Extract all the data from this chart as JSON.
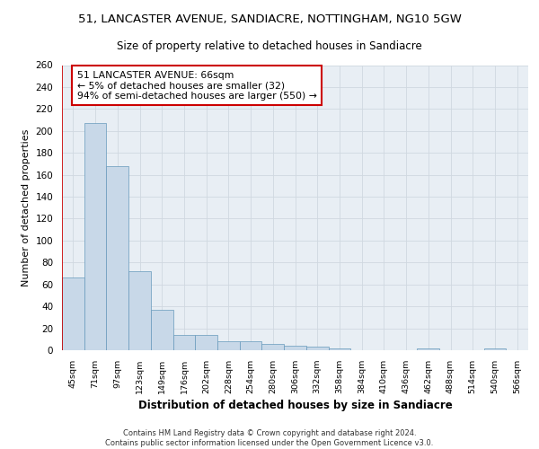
{
  "title1": "51, LANCASTER AVENUE, SANDIACRE, NOTTINGHAM, NG10 5GW",
  "title2": "Size of property relative to detached houses in Sandiacre",
  "xlabel": "Distribution of detached houses by size in Sandiacre",
  "ylabel": "Number of detached properties",
  "bar_labels": [
    "45sqm",
    "71sqm",
    "97sqm",
    "123sqm",
    "149sqm",
    "176sqm",
    "202sqm",
    "228sqm",
    "254sqm",
    "280sqm",
    "306sqm",
    "332sqm",
    "358sqm",
    "384sqm",
    "410sqm",
    "436sqm",
    "462sqm",
    "488sqm",
    "514sqm",
    "540sqm",
    "566sqm"
  ],
  "bar_values": [
    66,
    207,
    168,
    72,
    37,
    14,
    14,
    8,
    8,
    6,
    4,
    3,
    2,
    0,
    0,
    0,
    2,
    0,
    0,
    2,
    0
  ],
  "bar_color": "#c8d8e8",
  "bar_edge_color": "#6699bb",
  "grid_color": "#d0d8e0",
  "background_color": "#e8eef4",
  "annotation_line1": "51 LANCASTER AVENUE: 66sqm",
  "annotation_line2": "← 5% of detached houses are smaller (32)",
  "annotation_line3": "94% of semi-detached houses are larger (550) →",
  "annotation_box_color": "#ffffff",
  "annotation_box_edge": "#cc0000",
  "vline_color": "#cc0000",
  "footer": "Contains HM Land Registry data © Crown copyright and database right 2024.\nContains public sector information licensed under the Open Government Licence v3.0.",
  "ylim": [
    0,
    260
  ],
  "yticks": [
    0,
    20,
    40,
    60,
    80,
    100,
    120,
    140,
    160,
    180,
    200,
    220,
    240,
    260
  ]
}
